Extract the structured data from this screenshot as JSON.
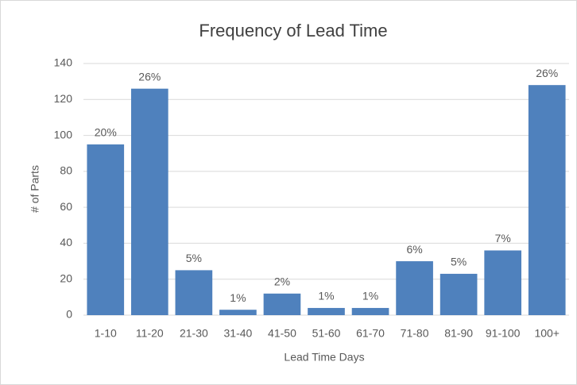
{
  "chart_data": {
    "type": "bar",
    "title": "Frequency of Lead Time",
    "x_label": "Lead Time Days",
    "y_label": "# of Parts",
    "categories": [
      "1-10",
      "11-20",
      "21-30",
      "31-40",
      "41-50",
      "51-60",
      "61-70",
      "71-80",
      "81-90",
      "91-100",
      "100+"
    ],
    "values": [
      95,
      126,
      25,
      3,
      12,
      4,
      4,
      30,
      23,
      36,
      128
    ],
    "value_labels": [
      "20%",
      "26%",
      "5%",
      "1%",
      "2%",
      "1%",
      "1%",
      "6%",
      "5%",
      "7%",
      "26%"
    ],
    "color": "#4f81bd",
    "ylim": [
      0,
      140
    ],
    "yticks": [
      0,
      20,
      40,
      60,
      80,
      100,
      120,
      140
    ],
    "grid": true
  }
}
